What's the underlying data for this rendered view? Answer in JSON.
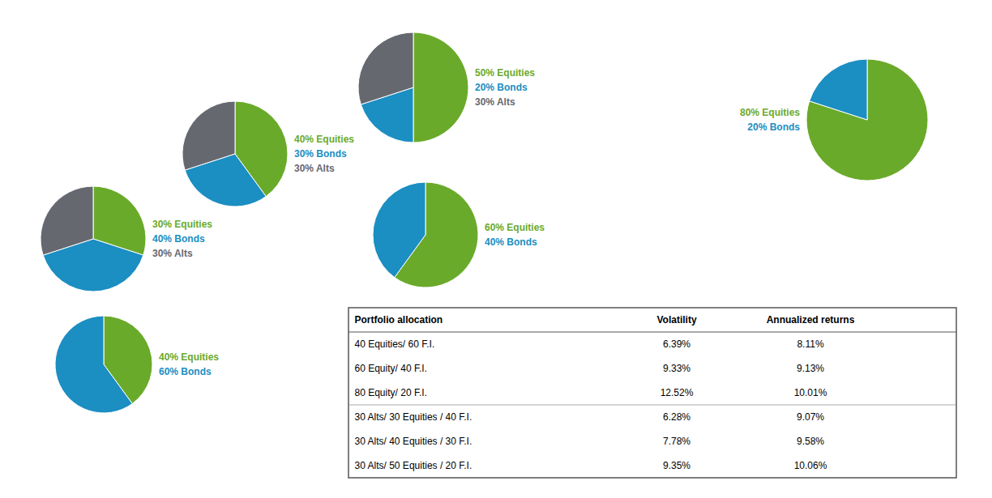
{
  "chart_data": [
    {
      "type": "pie",
      "values": [
        50,
        20,
        30
      ],
      "value_labels": [
        "50% Equities",
        "20% Bonds",
        "30% Alts"
      ],
      "colors": [
        "#6aaa2a",
        "#1b8ec2",
        "#666870"
      ]
    },
    {
      "type": "pie",
      "values": [
        80,
        20
      ],
      "value_labels": [
        "80% Equities",
        "20% Bonds"
      ],
      "colors": [
        "#6aaa2a",
        "#1b8ec2"
      ]
    },
    {
      "type": "pie",
      "values": [
        40,
        30,
        30
      ],
      "value_labels": [
        "40% Equities",
        "30% Bonds",
        "30% Alts"
      ],
      "colors": [
        "#6aaa2a",
        "#1b8ec2",
        "#666870"
      ]
    },
    {
      "type": "pie",
      "values": [
        60,
        40
      ],
      "value_labels": [
        "60% Equities",
        "40% Bonds"
      ],
      "colors": [
        "#6aaa2a",
        "#1b8ec2"
      ]
    },
    {
      "type": "pie",
      "values": [
        30,
        40,
        30
      ],
      "value_labels": [
        "30% Equities",
        "40% Bonds",
        "30% Alts"
      ],
      "colors": [
        "#6aaa2a",
        "#1b8ec2",
        "#666870"
      ]
    },
    {
      "type": "pie",
      "values": [
        40,
        60
      ],
      "value_labels": [
        "40% Equities",
        "60% Bonds"
      ],
      "colors": [
        "#6aaa2a",
        "#1b8ec2"
      ]
    },
    {
      "type": "table",
      "header": [
        "Portfolio allocation",
        "Volatility",
        "Annualized returns"
      ],
      "rows": [
        [
          "40 Equities/ 60 F.I.",
          "6.39%",
          "8.11%"
        ],
        [
          "60 Equity/ 40 F.I.",
          "9.33%",
          "9.13%"
        ],
        [
          "80 Equity/ 20 F.I.",
          "12.52%",
          "10.01%"
        ],
        [
          "30 Alts/ 30 Equities / 40 F.I.",
          "6.28%",
          "9.07%"
        ],
        [
          "30 Alts/ 40 Equities / 30 F.I.",
          "7.78%",
          "9.58%"
        ],
        [
          "30 Alts/ 50 Equities / 20 F.I.",
          "9.35%",
          "10.06%"
        ]
      ]
    }
  ]
}
